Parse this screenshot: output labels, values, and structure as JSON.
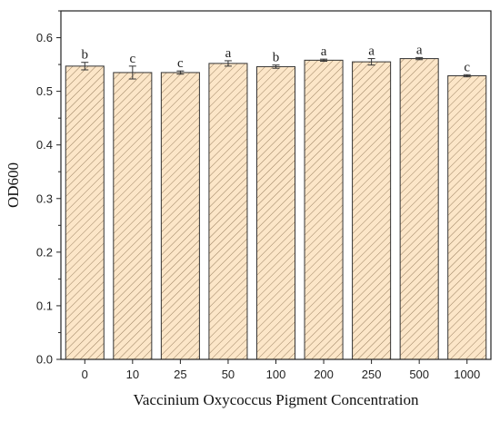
{
  "chart_data": {
    "type": "bar",
    "title": "",
    "xlabel": "Vaccinium Oxycoccus Pigment Concentration",
    "ylabel": "OD600",
    "categories": [
      "0",
      "10",
      "25",
      "50",
      "100",
      "200",
      "250",
      "500",
      "1000"
    ],
    "values": [
      0.547,
      0.535,
      0.535,
      0.552,
      0.546,
      0.558,
      0.555,
      0.561,
      0.529
    ],
    "errors": [
      0.007,
      0.012,
      0.003,
      0.005,
      0.003,
      0.002,
      0.006,
      0.002,
      0.002
    ],
    "significance": [
      "b",
      "c",
      "c",
      "a",
      "b",
      "a",
      "a",
      "a",
      "c"
    ],
    "ylim": [
      0,
      0.65
    ],
    "yticks": [
      "0.0",
      "0.1",
      "0.2",
      "0.3",
      "0.4",
      "0.5",
      "0.6"
    ],
    "grid": false,
    "legend": "none",
    "colors": {
      "bar_fill": "#fce6c8",
      "bar_hatch": "#9a8060",
      "bar_stroke": "#333333",
      "axis": "#222222"
    }
  }
}
